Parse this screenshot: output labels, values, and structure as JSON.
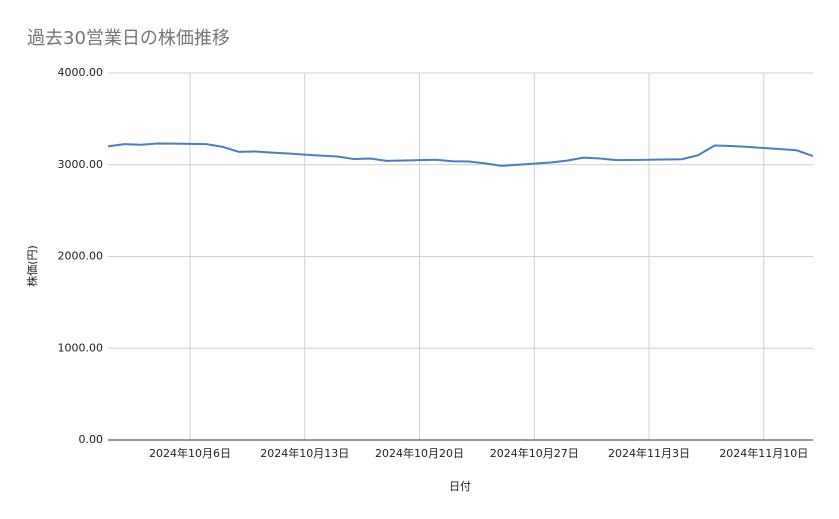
{
  "chart_data": {
    "type": "line",
    "title": "過去30営業日の株価推移",
    "x_label": "日付",
    "y_label": "株価(円)",
    "x": [
      "2024-10-01",
      "2024-10-02",
      "2024-10-03",
      "2024-10-04",
      "2024-10-05",
      "2024-10-06",
      "2024-10-07",
      "2024-10-08",
      "2024-10-09",
      "2024-10-10",
      "2024-10-11",
      "2024-10-12",
      "2024-10-13",
      "2024-10-14",
      "2024-10-15",
      "2024-10-16",
      "2024-10-17",
      "2024-10-18",
      "2024-10-19",
      "2024-10-20",
      "2024-10-21",
      "2024-10-22",
      "2024-10-23",
      "2024-10-24",
      "2024-10-25",
      "2024-10-26",
      "2024-10-27",
      "2024-10-28",
      "2024-10-29",
      "2024-10-30",
      "2024-10-31",
      "2024-11-01",
      "2024-11-02",
      "2024-11-03",
      "2024-11-04",
      "2024-11-05",
      "2024-11-06",
      "2024-11-07",
      "2024-11-08",
      "2024-11-09",
      "2024-11-10",
      "2024-11-11",
      "2024-11-12",
      "2024-11-13"
    ],
    "series": [
      {
        "color": "#4a7ebf",
        "values": [
          3200,
          3225,
          3218,
          3232,
          3230,
          3228,
          3225,
          3195,
          3140,
          3145,
          3132,
          3122,
          3110,
          3100,
          3090,
          3062,
          3068,
          3042,
          3046,
          3050,
          3055,
          3038,
          3036,
          3015,
          2988,
          3000,
          3012,
          3025,
          3045,
          3078,
          3068,
          3050,
          3052,
          3055,
          3057,
          3060,
          3105,
          3210,
          3205,
          3195,
          3182,
          3170,
          3158,
          3095
        ]
      }
    ],
    "xlim": [
      "2024-10-01",
      "2024-11-13"
    ],
    "xticks": [
      {
        "value": "2024-10-06",
        "label": "2024年10月6日"
      },
      {
        "value": "2024-10-13",
        "label": "2024年10月13日"
      },
      {
        "value": "2024-10-20",
        "label": "2024年10月20日"
      },
      {
        "value": "2024-10-27",
        "label": "2024年10月27日"
      },
      {
        "value": "2024-11-03",
        "label": "2024年11月3日"
      },
      {
        "value": "2024-11-10",
        "label": "2024年11月10日"
      }
    ],
    "ylim": [
      0,
      4000
    ],
    "yticks": [
      {
        "value": 0,
        "label": "0.00"
      },
      {
        "value": 1000,
        "label": "1000.00"
      },
      {
        "value": 2000,
        "label": "2000.00"
      },
      {
        "value": 3000,
        "label": "3000.00"
      },
      {
        "value": 4000,
        "label": "4000.00"
      }
    ],
    "grid": true
  }
}
